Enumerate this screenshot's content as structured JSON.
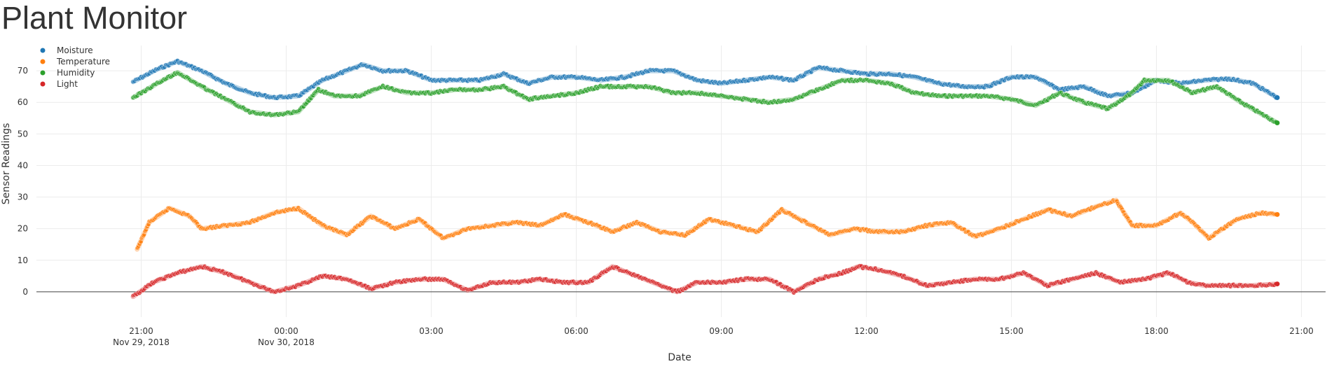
{
  "page": {
    "title": "Plant Monitor"
  },
  "chart_data": {
    "type": "scatter",
    "title": "",
    "xlabel": "Date",
    "ylabel": "Sensor Readings",
    "x_range": [
      "2018-11-29 18:50",
      "2018-11-30 21:30"
    ],
    "ylim": [
      -8,
      78
    ],
    "grid": true,
    "legend_position": "top-left",
    "x_ticks": [
      {
        "x": "2018-11-29 21:00",
        "label": "21:00",
        "sublabel": "Nov 29, 2018"
      },
      {
        "x": "2018-11-30 00:00",
        "label": "00:00",
        "sublabel": "Nov 30, 2018"
      },
      {
        "x": "2018-11-30 03:00",
        "label": "03:00",
        "sublabel": ""
      },
      {
        "x": "2018-11-30 06:00",
        "label": "06:00",
        "sublabel": ""
      },
      {
        "x": "2018-11-30 09:00",
        "label": "09:00",
        "sublabel": ""
      },
      {
        "x": "2018-11-30 12:00",
        "label": "12:00",
        "sublabel": ""
      },
      {
        "x": "2018-11-30 15:00",
        "label": "15:00",
        "sublabel": ""
      },
      {
        "x": "2018-11-30 18:00",
        "label": "18:00",
        "sublabel": ""
      },
      {
        "x": "2018-11-30 21:00",
        "label": "21:00",
        "sublabel": ""
      }
    ],
    "y_ticks": [
      0,
      10,
      20,
      30,
      40,
      50,
      60,
      70
    ],
    "series": [
      {
        "name": "Moisture",
        "color": "#1f77b4",
        "points": [
          [
            "2018-11-29 20:50",
            66.5
          ],
          [
            "2018-11-29 21:20",
            70.5
          ],
          [
            "2018-11-29 21:45",
            73
          ],
          [
            "2018-11-29 22:15",
            70
          ],
          [
            "2018-11-29 22:45",
            66
          ],
          [
            "2018-11-29 23:15",
            63
          ],
          [
            "2018-11-29 23:45",
            61.5
          ],
          [
            "2018-11-30 00:15",
            62
          ],
          [
            "2018-11-30 00:45",
            67
          ],
          [
            "2018-11-30 01:15",
            70
          ],
          [
            "2018-11-30 01:35",
            72
          ],
          [
            "2018-11-30 02:00",
            70
          ],
          [
            "2018-11-30 02:30",
            70
          ],
          [
            "2018-11-30 03:00",
            67
          ],
          [
            "2018-11-30 03:30",
            67
          ],
          [
            "2018-11-30 04:00",
            67
          ],
          [
            "2018-11-30 04:30",
            69
          ],
          [
            "2018-11-30 05:00",
            66
          ],
          [
            "2018-11-30 05:30",
            68
          ],
          [
            "2018-11-30 06:00",
            68
          ],
          [
            "2018-11-30 06:30",
            67
          ],
          [
            "2018-11-30 07:00",
            68
          ],
          [
            "2018-11-30 07:30",
            70
          ],
          [
            "2018-11-30 08:00",
            70
          ],
          [
            "2018-11-30 08:30",
            67
          ],
          [
            "2018-11-30 09:00",
            66
          ],
          [
            "2018-11-30 09:30",
            67
          ],
          [
            "2018-11-30 10:00",
            68
          ],
          [
            "2018-11-30 10:30",
            67
          ],
          [
            "2018-11-30 11:00",
            71
          ],
          [
            "2018-11-30 11:30",
            70
          ],
          [
            "2018-11-30 12:00",
            69
          ],
          [
            "2018-11-30 12:30",
            69
          ],
          [
            "2018-11-30 13:00",
            68
          ],
          [
            "2018-11-30 13:30",
            66
          ],
          [
            "2018-11-30 14:00",
            65
          ],
          [
            "2018-11-30 14:30",
            65
          ],
          [
            "2018-11-30 15:00",
            68
          ],
          [
            "2018-11-30 15:30",
            68
          ],
          [
            "2018-11-30 16:00",
            64
          ],
          [
            "2018-11-30 16:30",
            65
          ],
          [
            "2018-11-30 17:00",
            62
          ],
          [
            "2018-11-30 17:30",
            63
          ],
          [
            "2018-11-30 18:00",
            67
          ],
          [
            "2018-11-30 18:30",
            66
          ],
          [
            "2018-11-30 19:00",
            67
          ],
          [
            "2018-11-30 19:30",
            67.5
          ],
          [
            "2018-11-30 20:00",
            66
          ],
          [
            "2018-11-30 20:30",
            61.5
          ]
        ]
      },
      {
        "name": "Temperature",
        "color": "#ff7f0e",
        "points": [
          [
            "2018-11-29 20:55",
            13.5
          ],
          [
            "2018-11-29 21:10",
            22
          ],
          [
            "2018-11-29 21:35",
            26.5
          ],
          [
            "2018-11-29 22:00",
            24
          ],
          [
            "2018-11-29 22:15",
            20
          ],
          [
            "2018-11-29 22:45",
            21
          ],
          [
            "2018-11-29 23:15",
            22
          ],
          [
            "2018-11-29 23:45",
            25
          ],
          [
            "2018-11-30 00:15",
            26.5
          ],
          [
            "2018-11-30 00:45",
            21
          ],
          [
            "2018-11-30 01:15",
            18
          ],
          [
            "2018-11-30 01:45",
            24
          ],
          [
            "2018-11-30 02:15",
            20
          ],
          [
            "2018-11-30 02:45",
            23
          ],
          [
            "2018-11-30 03:15",
            17
          ],
          [
            "2018-11-30 03:45",
            20
          ],
          [
            "2018-11-30 04:15",
            21
          ],
          [
            "2018-11-30 04:45",
            22
          ],
          [
            "2018-11-30 05:15",
            21
          ],
          [
            "2018-11-30 05:45",
            24.5
          ],
          [
            "2018-11-30 06:15",
            22
          ],
          [
            "2018-11-30 06:45",
            19
          ],
          [
            "2018-11-30 07:15",
            22
          ],
          [
            "2018-11-30 07:45",
            19
          ],
          [
            "2018-11-30 08:15",
            18
          ],
          [
            "2018-11-30 08:45",
            23
          ],
          [
            "2018-11-30 09:15",
            21
          ],
          [
            "2018-11-30 09:45",
            19
          ],
          [
            "2018-11-30 10:15",
            26
          ],
          [
            "2018-11-30 10:45",
            22
          ],
          [
            "2018-11-30 11:15",
            18
          ],
          [
            "2018-11-30 11:45",
            20
          ],
          [
            "2018-11-30 12:15",
            19
          ],
          [
            "2018-11-30 12:45",
            19
          ],
          [
            "2018-11-30 13:15",
            21
          ],
          [
            "2018-11-30 13:45",
            22
          ],
          [
            "2018-11-30 14:15",
            17.5
          ],
          [
            "2018-11-30 14:45",
            20
          ],
          [
            "2018-11-30 15:15",
            23
          ],
          [
            "2018-11-30 15:45",
            26
          ],
          [
            "2018-11-30 16:15",
            24
          ],
          [
            "2018-11-30 16:45",
            27
          ],
          [
            "2018-11-30 17:10",
            29
          ],
          [
            "2018-11-30 17:30",
            21
          ],
          [
            "2018-11-30 18:00",
            21
          ],
          [
            "2018-11-30 18:30",
            25
          ],
          [
            "2018-11-30 18:45",
            22
          ],
          [
            "2018-11-30 19:05",
            17
          ],
          [
            "2018-11-30 19:40",
            23
          ],
          [
            "2018-11-30 20:10",
            25
          ],
          [
            "2018-11-30 20:30",
            24.5
          ]
        ]
      },
      {
        "name": "Humidity",
        "color": "#2ca02c",
        "points": [
          [
            "2018-11-29 20:50",
            61.5
          ],
          [
            "2018-11-29 21:20",
            66
          ],
          [
            "2018-11-29 21:45",
            69.5
          ],
          [
            "2018-11-29 22:15",
            65
          ],
          [
            "2018-11-29 22:45",
            61
          ],
          [
            "2018-11-29 23:15",
            57
          ],
          [
            "2018-11-29 23:45",
            56
          ],
          [
            "2018-11-30 00:15",
            57
          ],
          [
            "2018-11-30 00:40",
            64
          ],
          [
            "2018-11-30 01:00",
            62
          ],
          [
            "2018-11-30 01:30",
            62
          ],
          [
            "2018-11-30 02:00",
            65
          ],
          [
            "2018-11-30 02:30",
            63
          ],
          [
            "2018-11-30 03:00",
            63
          ],
          [
            "2018-11-30 03:30",
            64
          ],
          [
            "2018-11-30 04:00",
            64
          ],
          [
            "2018-11-30 04:30",
            65
          ],
          [
            "2018-11-30 05:00",
            61
          ],
          [
            "2018-11-30 05:30",
            62
          ],
          [
            "2018-11-30 06:00",
            63
          ],
          [
            "2018-11-30 06:30",
            65
          ],
          [
            "2018-11-30 07:00",
            65
          ],
          [
            "2018-11-30 07:30",
            65
          ],
          [
            "2018-11-30 08:00",
            63
          ],
          [
            "2018-11-30 08:30",
            63
          ],
          [
            "2018-11-30 09:00",
            62
          ],
          [
            "2018-11-30 09:30",
            61
          ],
          [
            "2018-11-30 10:00",
            60
          ],
          [
            "2018-11-30 10:30",
            61
          ],
          [
            "2018-11-30 11:00",
            64
          ],
          [
            "2018-11-30 11:30",
            67
          ],
          [
            "2018-11-30 12:00",
            67
          ],
          [
            "2018-11-30 12:30",
            66
          ],
          [
            "2018-11-30 13:00",
            63
          ],
          [
            "2018-11-30 13:30",
            62
          ],
          [
            "2018-11-30 14:00",
            62
          ],
          [
            "2018-11-30 14:30",
            62
          ],
          [
            "2018-11-30 15:00",
            61
          ],
          [
            "2018-11-30 15:30",
            59
          ],
          [
            "2018-11-30 16:00",
            63
          ],
          [
            "2018-11-30 16:30",
            60
          ],
          [
            "2018-11-30 17:00",
            58
          ],
          [
            "2018-11-30 17:30",
            63
          ],
          [
            "2018-11-30 17:45",
            67
          ],
          [
            "2018-11-30 18:15",
            67
          ],
          [
            "2018-11-30 18:45",
            63
          ],
          [
            "2018-11-30 19:15",
            65
          ],
          [
            "2018-11-30 19:45",
            60
          ],
          [
            "2018-11-30 20:30",
            53.5
          ]
        ]
      },
      {
        "name": "Light",
        "color": "#d62728",
        "points": [
          [
            "2018-11-29 20:50",
            -1.5
          ],
          [
            "2018-11-29 21:15",
            3
          ],
          [
            "2018-11-29 21:45",
            6
          ],
          [
            "2018-11-29 22:15",
            8
          ],
          [
            "2018-11-29 22:45",
            6
          ],
          [
            "2018-11-29 23:15",
            3
          ],
          [
            "2018-11-29 23:45",
            0
          ],
          [
            "2018-11-30 00:15",
            2
          ],
          [
            "2018-11-30 00:45",
            5
          ],
          [
            "2018-11-30 01:15",
            4
          ],
          [
            "2018-11-30 01:45",
            1
          ],
          [
            "2018-11-30 02:15",
            3
          ],
          [
            "2018-11-30 02:45",
            4
          ],
          [
            "2018-11-30 03:15",
            4
          ],
          [
            "2018-11-30 03:45",
            0.5
          ],
          [
            "2018-11-30 04:15",
            3
          ],
          [
            "2018-11-30 04:45",
            3
          ],
          [
            "2018-11-30 05:15",
            4
          ],
          [
            "2018-11-30 05:45",
            3
          ],
          [
            "2018-11-30 06:15",
            3
          ],
          [
            "2018-11-30 06:45",
            8
          ],
          [
            "2018-11-30 07:15",
            5
          ],
          [
            "2018-11-30 07:45",
            2
          ],
          [
            "2018-11-30 08:05",
            0
          ],
          [
            "2018-11-30 08:30",
            3
          ],
          [
            "2018-11-30 09:00",
            3
          ],
          [
            "2018-11-30 09:30",
            4
          ],
          [
            "2018-11-30 10:00",
            4
          ],
          [
            "2018-11-30 10:30",
            0
          ],
          [
            "2018-11-30 11:00",
            4
          ],
          [
            "2018-11-30 11:30",
            6
          ],
          [
            "2018-11-30 11:50",
            8
          ],
          [
            "2018-11-30 12:15",
            7
          ],
          [
            "2018-11-30 12:45",
            5
          ],
          [
            "2018-11-30 13:15",
            2
          ],
          [
            "2018-11-30 13:45",
            3
          ],
          [
            "2018-11-30 14:15",
            4
          ],
          [
            "2018-11-30 14:45",
            4
          ],
          [
            "2018-11-30 15:15",
            6
          ],
          [
            "2018-11-30 15:45",
            2
          ],
          [
            "2018-11-30 16:15",
            4
          ],
          [
            "2018-11-30 16:45",
            6
          ],
          [
            "2018-11-30 17:15",
            3
          ],
          [
            "2018-11-30 17:45",
            4
          ],
          [
            "2018-11-30 18:15",
            6
          ],
          [
            "2018-11-30 18:40",
            3
          ],
          [
            "2018-11-30 19:00",
            2
          ],
          [
            "2018-11-30 19:30",
            2
          ],
          [
            "2018-11-30 20:00",
            2
          ],
          [
            "2018-11-30 20:30",
            2.5
          ]
        ]
      }
    ]
  }
}
